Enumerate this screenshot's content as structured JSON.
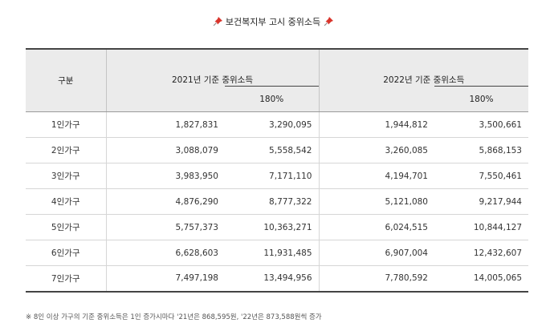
{
  "title": {
    "text": "보건복지부 고시 중위소득",
    "left_icon": "pushpin-icon",
    "right_icon": "pushpin-icon",
    "icon_color": "#d9342b"
  },
  "table": {
    "header": {
      "category": "구분",
      "year_2021": "2021년 기준 중위소득",
      "year_2021_sub": "180%",
      "year_2022": "2022년 기준 중위소득",
      "year_2022_sub": "180%"
    },
    "rows": [
      {
        "label": "1인가구",
        "v2021": "1,827,831",
        "v2021_180": "3,290,095",
        "v2022": "1,944,812",
        "v2022_180": "3,500,661"
      },
      {
        "label": "2인가구",
        "v2021": "3,088,079",
        "v2021_180": "5,558,542",
        "v2022": "3,260,085",
        "v2022_180": "5,868,153"
      },
      {
        "label": "3인가구",
        "v2021": "3,983,950",
        "v2021_180": "7,171,110",
        "v2022": "4,194,701",
        "v2022_180": "7,550,461"
      },
      {
        "label": "4인가구",
        "v2021": "4,876,290",
        "v2021_180": "8,777,322",
        "v2022": "5,121,080",
        "v2022_180": "9,217,944"
      },
      {
        "label": "5인가구",
        "v2021": "5,757,373",
        "v2021_180": "10,363,271",
        "v2022": "6,024,515",
        "v2022_180": "10,844,127"
      },
      {
        "label": "6인가구",
        "v2021": "6,628,603",
        "v2021_180": "11,931,485",
        "v2022": "6,907,004",
        "v2022_180": "12,432,607"
      },
      {
        "label": "7인가구",
        "v2021": "7,497,198",
        "v2021_180": "13,494,956",
        "v2022": "7,780,592",
        "v2022_180": "14,005,065"
      }
    ]
  },
  "footnote": "※ 8인 이상 가구의 기준 중위소득은 1인 증가시마다 '21년은 868,595원, '22년은 873,588원씩 증가"
}
